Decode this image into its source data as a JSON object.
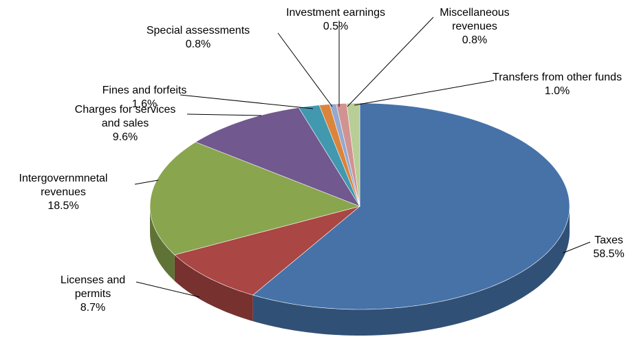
{
  "chart_data": {
    "type": "pie3d",
    "categories": [
      "Taxes",
      "Licenses and permits",
      "Intergovernmnetal revenues",
      "Charges for services and sales",
      "Fines and forfeits",
      "Special assessments",
      "Investment earnings",
      "Miscellaneous revenues",
      "Transfers from other funds"
    ],
    "values": [
      58.5,
      8.7,
      18.5,
      9.6,
      1.6,
      0.8,
      0.5,
      0.8,
      1.0
    ],
    "value_labels": [
      "58.5%",
      "8.7%",
      "18.5%",
      "9.6%",
      "1.6%",
      "0.8%",
      "0.5%",
      "0.8%",
      "1.0%"
    ],
    "colors": [
      "#4672a8",
      "#aa4643",
      "#89a54e",
      "#71588f",
      "#4198af",
      "#db843d",
      "#93a9cf",
      "#d19392",
      "#b9cd96"
    ]
  }
}
